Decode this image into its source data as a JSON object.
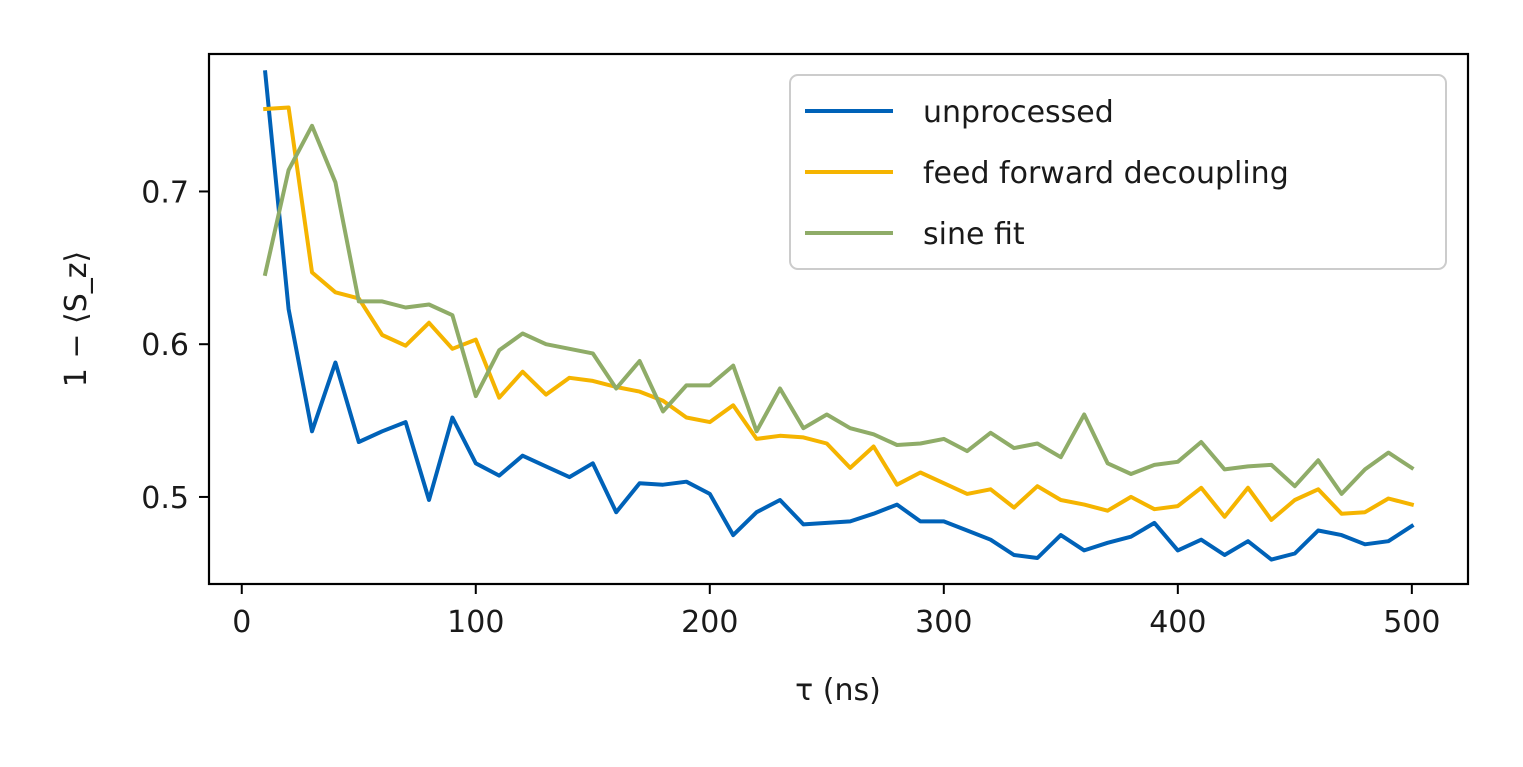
{
  "chart_data": {
    "type": "line",
    "title": "",
    "xlabel": "τ (ns)",
    "ylabel": "1 − ⟨S_z⟩",
    "xlim": [
      -14,
      524
    ],
    "ylim": [
      0.443,
      0.79
    ],
    "xticks": [
      0,
      100,
      200,
      300,
      400,
      500
    ],
    "yticks": [
      0.5,
      0.6,
      0.7
    ],
    "ytick_labels": [
      "0.5",
      "0.6",
      "0.7"
    ],
    "grid": false,
    "legend_position": "top-right",
    "x": [
      10,
      20,
      30,
      40,
      50,
      60,
      70,
      80,
      90,
      100,
      110,
      120,
      130,
      140,
      150,
      160,
      170,
      180,
      190,
      200,
      210,
      220,
      230,
      240,
      250,
      260,
      270,
      280,
      290,
      300,
      310,
      320,
      330,
      340,
      350,
      360,
      370,
      380,
      390,
      400,
      410,
      420,
      430,
      440,
      450,
      460,
      470,
      480,
      490,
      500
    ],
    "series": [
      {
        "name": "unprocessed",
        "color": "#0062b8",
        "values": [
          0.778,
          0.623,
          0.543,
          0.588,
          0.536,
          0.543,
          0.549,
          0.498,
          0.552,
          0.522,
          0.514,
          0.527,
          0.52,
          0.513,
          0.522,
          0.49,
          0.509,
          0.508,
          0.51,
          0.502,
          0.475,
          0.49,
          0.498,
          0.482,
          0.483,
          0.484,
          0.489,
          0.495,
          0.484,
          0.484,
          0.478,
          0.472,
          0.462,
          0.46,
          0.475,
          0.465,
          0.47,
          0.474,
          0.483,
          0.465,
          0.472,
          0.462,
          0.471,
          0.459,
          0.463,
          0.478,
          0.475,
          0.469,
          0.471,
          0.481
        ]
      },
      {
        "name": "feed forward decoupling",
        "color": "#f5b400",
        "values": [
          0.754,
          0.755,
          0.647,
          0.634,
          0.63,
          0.606,
          0.599,
          0.614,
          0.597,
          0.603,
          0.565,
          0.582,
          0.567,
          0.578,
          0.576,
          0.572,
          0.569,
          0.563,
          0.552,
          0.549,
          0.56,
          0.538,
          0.54,
          0.539,
          0.535,
          0.519,
          0.533,
          0.508,
          0.516,
          0.509,
          0.502,
          0.505,
          0.493,
          0.507,
          0.498,
          0.495,
          0.491,
          0.5,
          0.492,
          0.494,
          0.506,
          0.487,
          0.506,
          0.485,
          0.498,
          0.505,
          0.489,
          0.49,
          0.499,
          0.495
        ]
      },
      {
        "name": "sine fit",
        "color": "#8fac68",
        "values": [
          0.646,
          0.714,
          0.743,
          0.706,
          0.628,
          0.628,
          0.624,
          0.626,
          0.619,
          0.566,
          0.596,
          0.607,
          0.6,
          0.597,
          0.594,
          0.571,
          0.589,
          0.556,
          0.573,
          0.573,
          0.586,
          0.543,
          0.571,
          0.545,
          0.554,
          0.545,
          0.541,
          0.534,
          0.535,
          0.538,
          0.53,
          0.542,
          0.532,
          0.535,
          0.526,
          0.554,
          0.522,
          0.515,
          0.521,
          0.523,
          0.536,
          0.518,
          0.52,
          0.521,
          0.507,
          0.524,
          0.502,
          0.518,
          0.529,
          0.519
        ]
      }
    ]
  }
}
